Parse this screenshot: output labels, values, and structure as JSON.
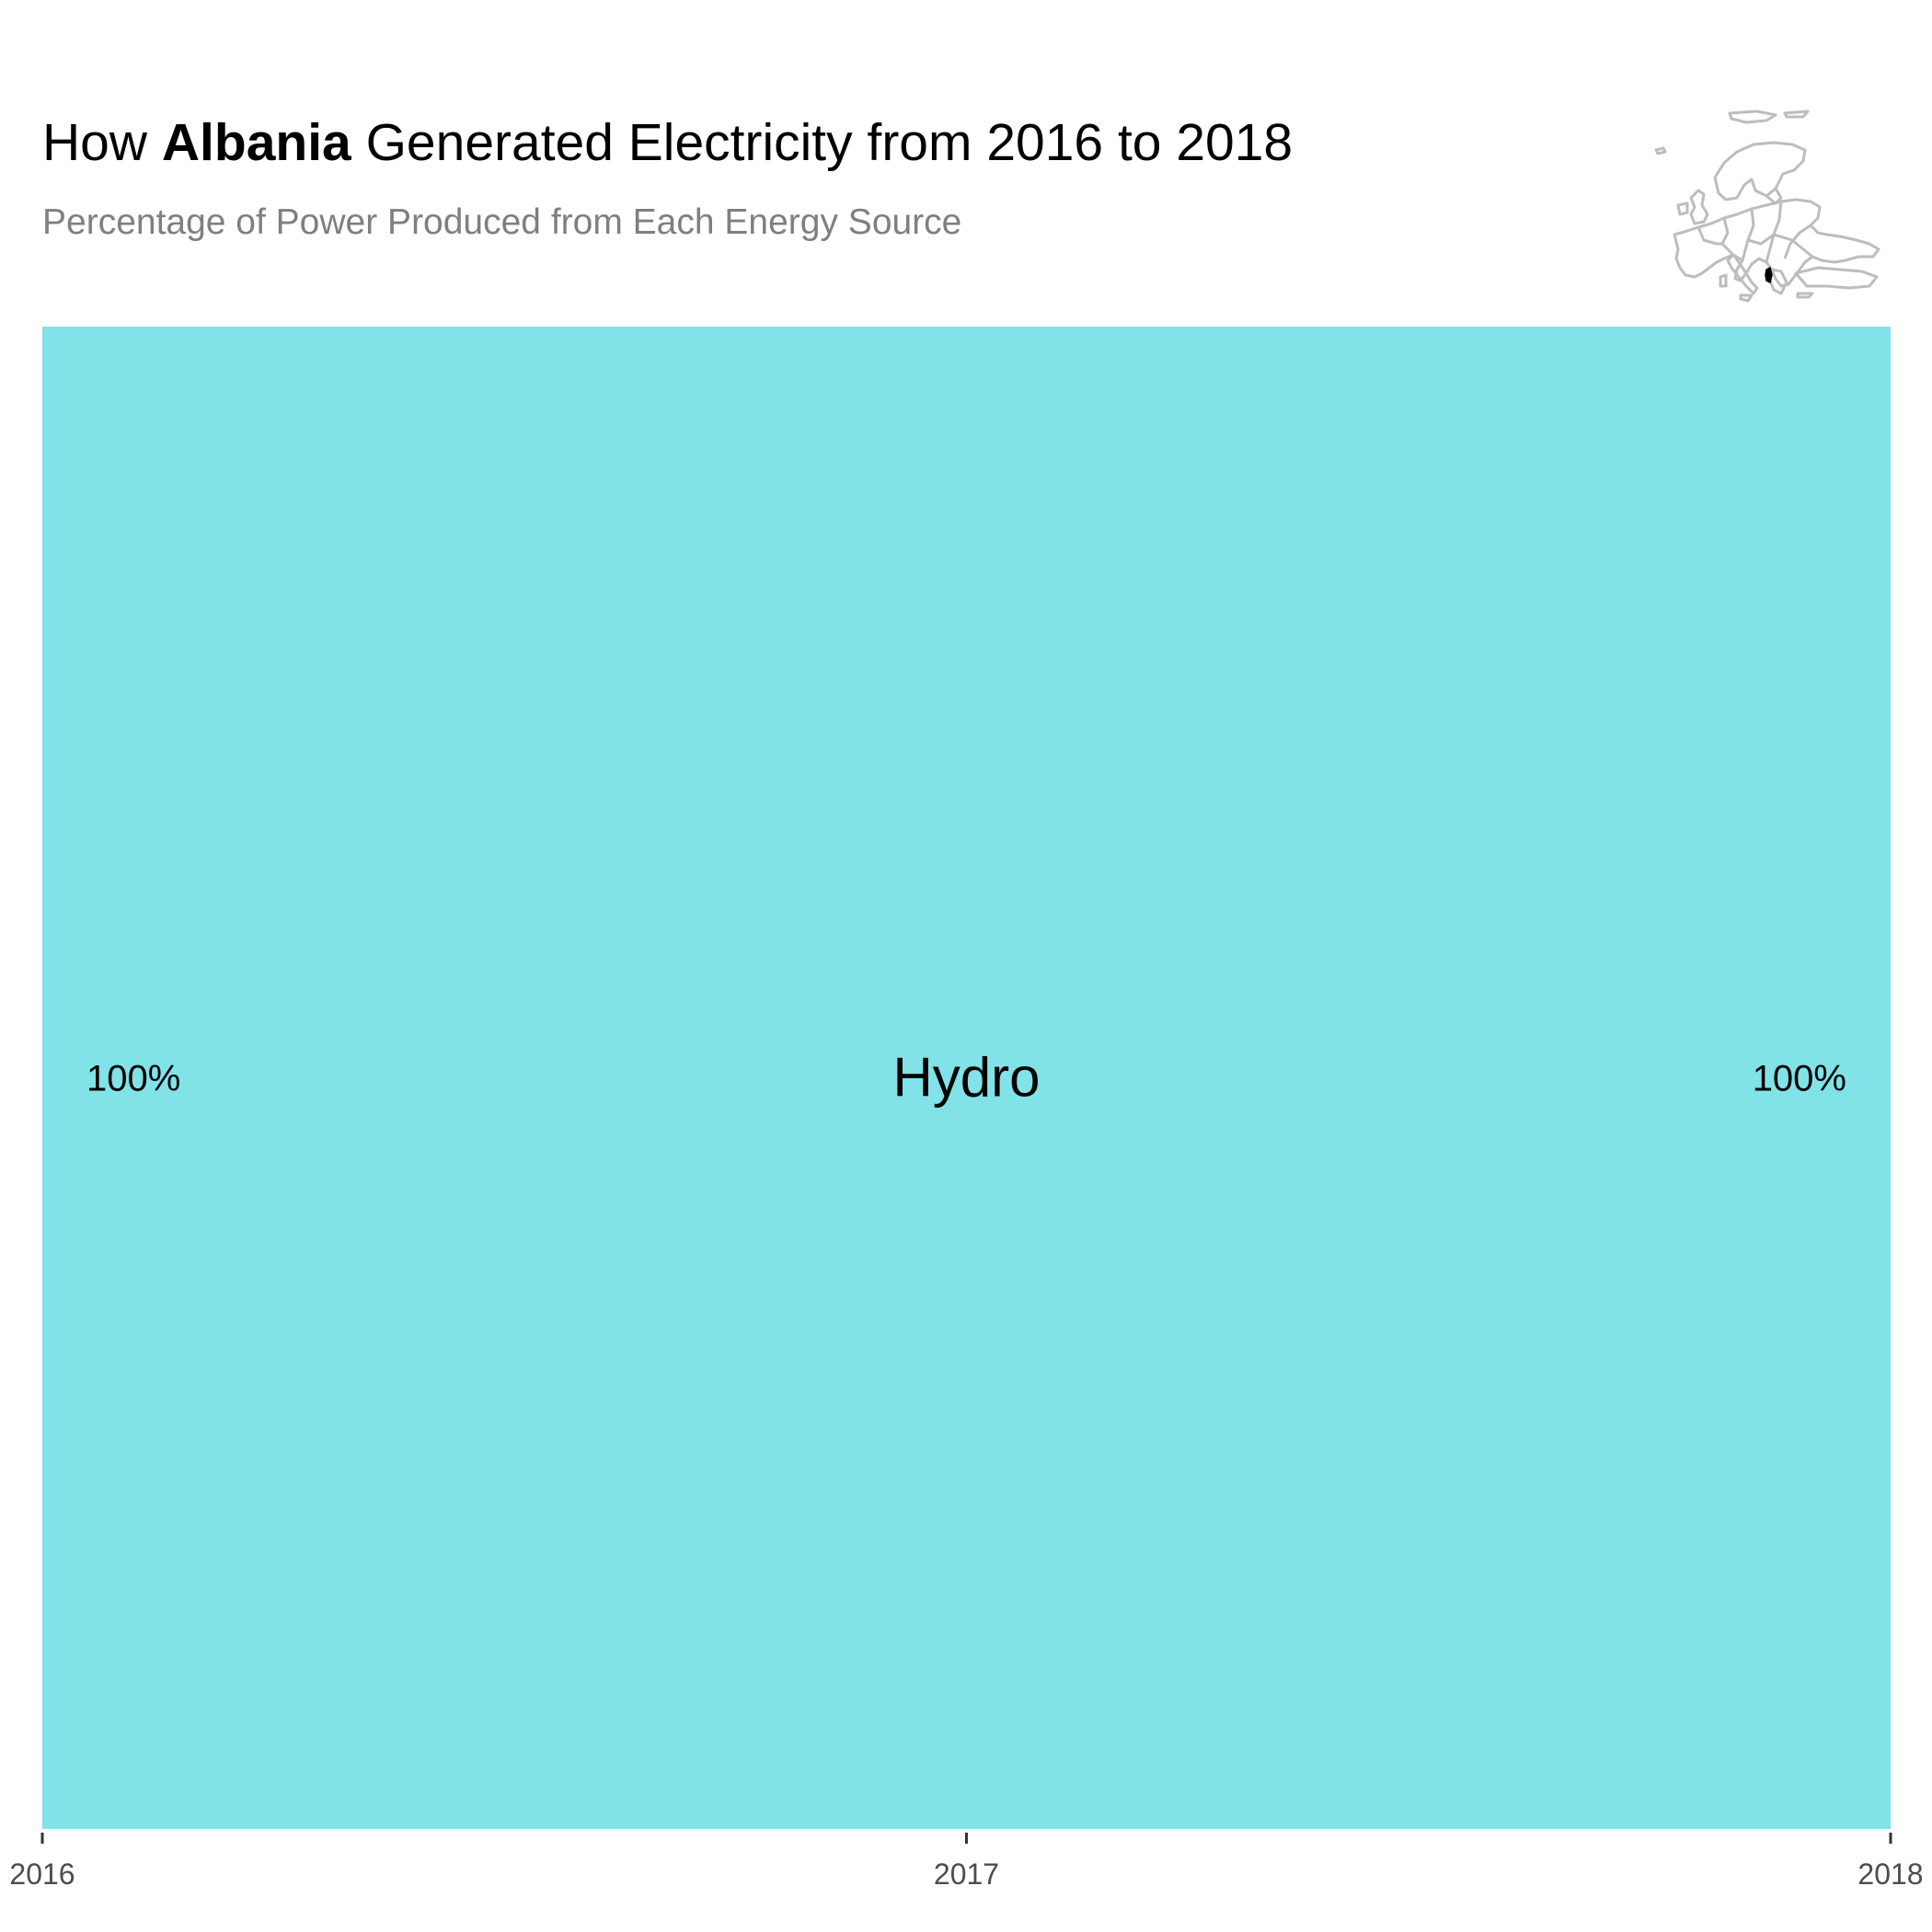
{
  "header": {
    "title_prefix": "How ",
    "title_country": "Albania",
    "title_suffix": " Generated Electricity from 2016 to 2018",
    "subtitle": "Percentage of Power Produced from Each Energy Source"
  },
  "inset_map": {
    "icon": "europe-map-icon",
    "highlight": "Albania",
    "outline_color": "#bdbdbd",
    "highlight_color": "#000000"
  },
  "chart_data": {
    "type": "area",
    "x": [
      2016,
      2017,
      2018
    ],
    "x_tick_labels": [
      "2016",
      "2017",
      "2018"
    ],
    "xlim": [
      2016,
      2018
    ],
    "ylim": [
      0,
      100
    ],
    "grid": false,
    "series": [
      {
        "name": "Hydro",
        "values": [
          100,
          100,
          100
        ],
        "color": "#81e2e8"
      }
    ],
    "start_label": "100%",
    "end_label": "100%"
  }
}
